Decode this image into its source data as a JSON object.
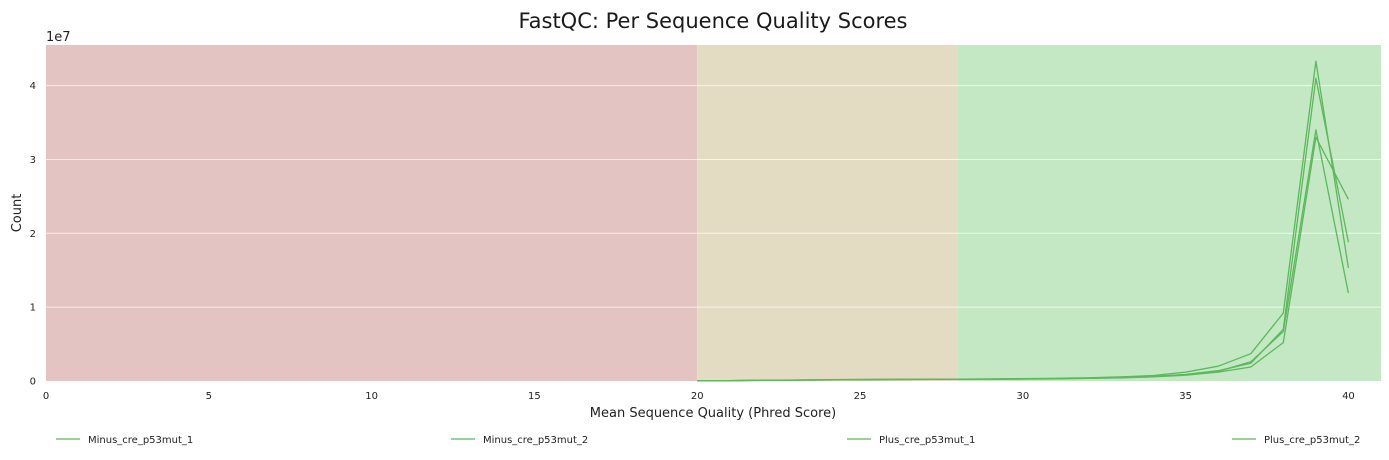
{
  "chart_data": {
    "type": "line",
    "title": "FastQC: Per Sequence Quality Scores",
    "xlabel": "Mean Sequence Quality (Phred Score)",
    "ylabel": "Count",
    "y_multiplier_label": "1e7",
    "xlim": [
      0,
      41
    ],
    "ylim": [
      0,
      45500000
    ],
    "xticks": [
      0,
      5,
      10,
      15,
      20,
      25,
      30,
      35,
      40
    ],
    "yticks": [
      0,
      1,
      2,
      3,
      4
    ],
    "grid": true,
    "legend_placement": "bottom",
    "line_color": "#5cb85c",
    "bands": [
      {
        "from": 0,
        "to": 20,
        "color": "#e4c3c3"
      },
      {
        "from": 20,
        "to": 28,
        "color": "#e4dbc3"
      },
      {
        "from": 28,
        "to": 41,
        "color": "#c4e8c4"
      }
    ],
    "x": [
      20,
      21,
      22,
      23,
      24,
      25,
      26,
      27,
      28,
      29,
      30,
      31,
      32,
      33,
      34,
      35,
      36,
      37,
      38,
      39,
      40
    ],
    "series": [
      {
        "name": "Minus_cre_p53mut_1",
        "values": [
          20000,
          50000,
          90000,
          120000,
          160000,
          190000,
          210000,
          220000,
          240000,
          260000,
          290000,
          330000,
          390000,
          480000,
          620000,
          900000,
          1400000,
          2400000,
          7000000,
          41000000,
          18800000
        ]
      },
      {
        "name": "Minus_cre_p53mut_2",
        "values": [
          20000,
          40000,
          80000,
          110000,
          140000,
          170000,
          190000,
          200000,
          220000,
          240000,
          260000,
          300000,
          350000,
          430000,
          550000,
          780000,
          1200000,
          1900000,
          5200000,
          33000000,
          24600000
        ]
      },
      {
        "name": "Plus_cre_p53mut_1",
        "values": [
          30000,
          60000,
          100000,
          140000,
          180000,
          210000,
          230000,
          240000,
          260000,
          290000,
          320000,
          370000,
          440000,
          560000,
          750000,
          1200000,
          2000000,
          3700000,
          9200000,
          43300000,
          15300000
        ]
      },
      {
        "name": "Plus_cre_p53mut_2",
        "values": [
          20000,
          50000,
          90000,
          120000,
          150000,
          180000,
          200000,
          210000,
          230000,
          250000,
          280000,
          320000,
          370000,
          460000,
          600000,
          850000,
          1300000,
          2600000,
          6700000,
          34000000,
          11900000
        ]
      }
    ]
  }
}
